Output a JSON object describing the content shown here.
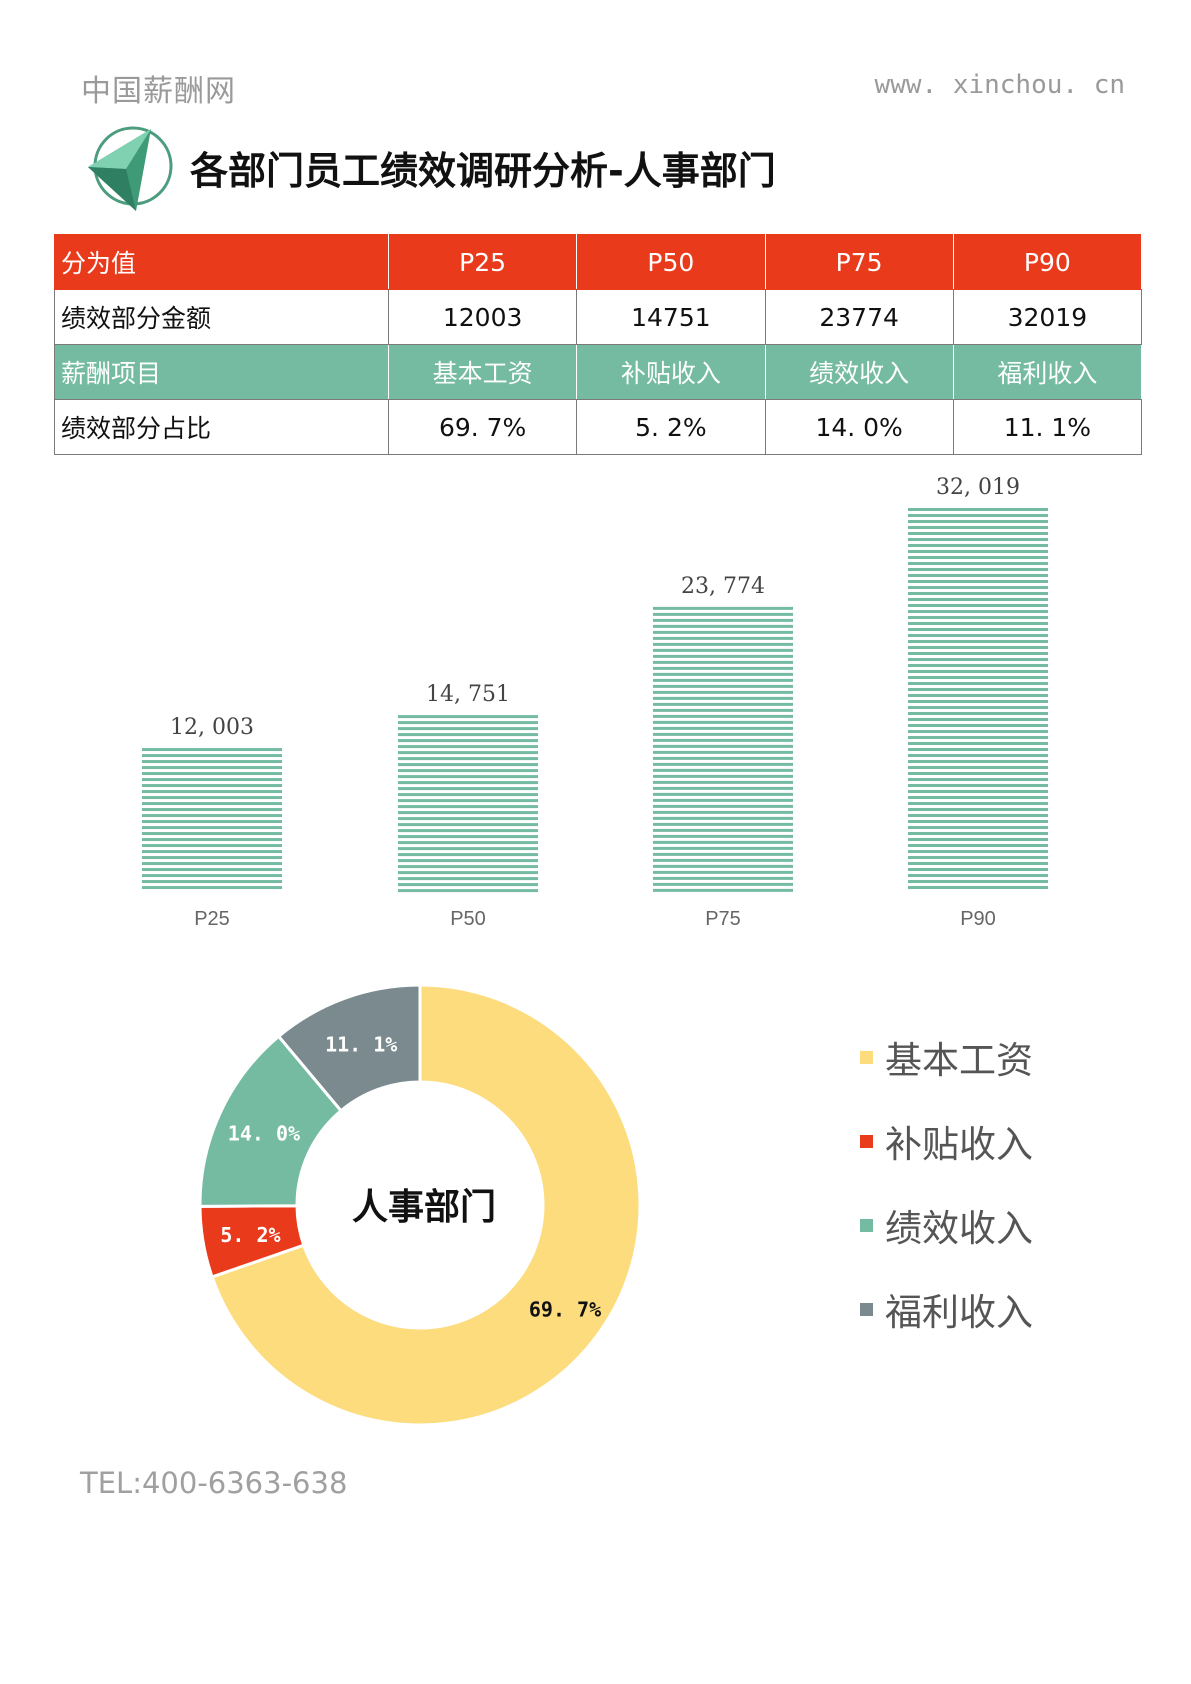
{
  "header": {
    "brand": "中国薪酬网",
    "site": "www. xinchou. cn",
    "title": "各部门员工绩效调研分析-人事部门"
  },
  "table": {
    "row1": [
      "分为值",
      "P25",
      "P50",
      "P75",
      "P90"
    ],
    "row2": [
      "绩效部分金额",
      "12003",
      "14751",
      "23774",
      "32019"
    ],
    "row3": [
      "薪酬项目",
      "基本工资",
      "补贴收入",
      "绩效收入",
      "福利收入"
    ],
    "row4": [
      "绩效部分占比",
      "69. 7%",
      "5. 2%",
      "14. 0%",
      "11. 1%"
    ]
  },
  "chart_data": [
    {
      "type": "bar",
      "categories": [
        "P25",
        "P50",
        "P75",
        "P90"
      ],
      "values": [
        12003,
        14751,
        23774,
        32019
      ],
      "data_labels": [
        "12, 003",
        "14, 751",
        "23, 774",
        "32, 019"
      ],
      "title": "",
      "xlabel": "",
      "ylabel": "",
      "ylim": [
        0,
        32019
      ],
      "grid": false,
      "color": "#74bba2",
      "fill_pattern": "horizontal-stripes"
    },
    {
      "type": "pie",
      "donut": true,
      "center_label": "人事部门",
      "categories": [
        "基本工资",
        "补贴收入",
        "绩效收入",
        "福利收入"
      ],
      "values": [
        69.7,
        5.2,
        14.0,
        11.1
      ],
      "data_labels": [
        "69. 7%",
        "5. 2%",
        "14. 0%",
        "11. 1%"
      ],
      "colors": [
        "#fcdc7d",
        "#ea3a1c",
        "#74bba2",
        "#7a8a8e"
      ],
      "legend": "right"
    }
  ],
  "footer": {
    "tel": "TEL:400-6363-638"
  },
  "colors": {
    "red": "#ea3a1c",
    "green": "#74bba2",
    "yellow": "#fcdc7d",
    "gray": "#7a8a8e"
  }
}
